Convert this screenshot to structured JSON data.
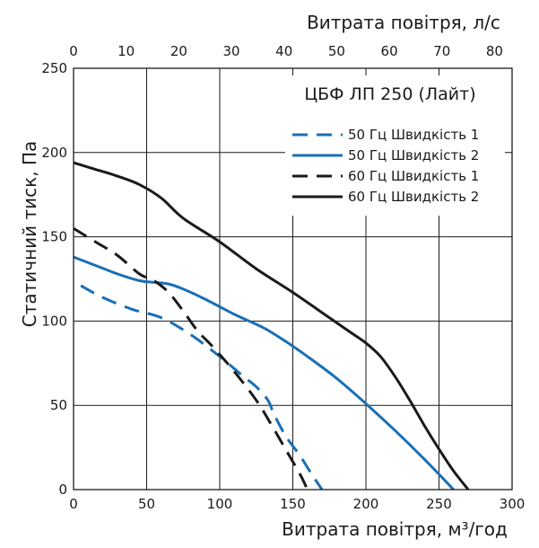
{
  "chart_data": {
    "type": "line",
    "title": "ЦБФ ЛП 250 (Лайт)",
    "xlabel": "Витрата повітря, м³/год",
    "x2label": "Витрата повітря, л/с",
    "ylabel": "Статичний тиск, Па",
    "xlim": [
      0,
      300
    ],
    "x2lim": [
      0,
      83.333
    ],
    "ylim": [
      0,
      250
    ],
    "x_ticks": [
      0,
      50,
      100,
      150,
      200,
      250,
      300
    ],
    "x2_ticks": [
      0,
      10,
      20,
      30,
      40,
      50,
      60,
      70,
      80
    ],
    "y_ticks": [
      0,
      50,
      100,
      150,
      200,
      250
    ],
    "grid": true,
    "legend_position": "top-right",
    "colors": {
      "blue": "#1a6fb5",
      "black": "#1a1a1a"
    },
    "series": [
      {
        "name": "50 Гц Швидкість 1",
        "color": "#1a6fb5",
        "dash": "dashed",
        "x": [
          5,
          20,
          40,
          60,
          80,
          100,
          115,
          125,
          133,
          137,
          145,
          155,
          163,
          170
        ],
        "y": [
          121,
          114,
          107,
          102,
          92,
          79,
          68,
          61,
          53,
          45,
          32,
          20,
          9,
          0
        ]
      },
      {
        "name": "50 Гц Швидкість 2",
        "color": "#1a6fb5",
        "dash": "solid",
        "x": [
          0,
          15,
          30,
          45,
          55,
          65,
          75,
          90,
          110,
          130,
          145,
          160,
          180,
          200,
          220,
          240,
          260
        ],
        "y": [
          138,
          133,
          128,
          124,
          123,
          122,
          119,
          113,
          104,
          96,
          88,
          79,
          66,
          51,
          35,
          18,
          0
        ]
      },
      {
        "name": "60 Гц Швидкість 1",
        "color": "#1a1a1a",
        "dash": "dashed",
        "x": [
          0,
          15,
          30,
          45,
          55,
          65,
          75,
          85,
          95,
          110,
          125,
          135,
          145,
          155,
          160
        ],
        "y": [
          155,
          147,
          139,
          128,
          124,
          117,
          106,
          94,
          85,
          70,
          53,
          39,
          24,
          9,
          0
        ]
      },
      {
        "name": "60 Гц Швидкість 2",
        "color": "#1a1a1a",
        "dash": "solid",
        "x": [
          0,
          15,
          30,
          45,
          60,
          75,
          100,
          125,
          150,
          175,
          190,
          200,
          210,
          220,
          230,
          240,
          250,
          260,
          270
        ],
        "y": [
          194,
          190,
          186,
          181,
          173,
          161,
          147,
          131,
          117,
          102,
          93,
          87,
          79,
          67,
          53,
          38,
          24,
          11,
          0
        ]
      }
    ]
  }
}
